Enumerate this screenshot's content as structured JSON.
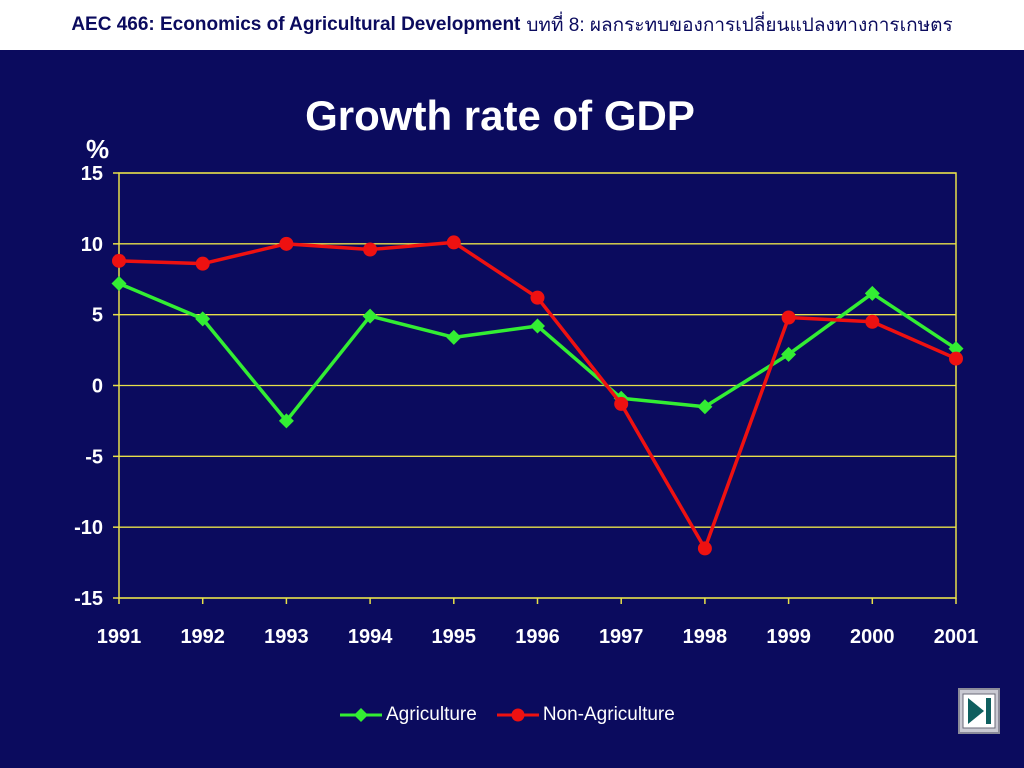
{
  "header": {
    "course": "AEC 466: Economics of Agricultural Development",
    "chapter": "บทที่ 8: ผลกระทบของการเปลี่ยนแปลงทางการเกษตร"
  },
  "colors": {
    "background": "#0b0b5e",
    "grid": "#e8e04a",
    "agriculture": "#33ee33",
    "non_agriculture": "#ee1111"
  },
  "chart_data": {
    "type": "line",
    "title": "Growth rate of GDP",
    "ylabel": "%",
    "xlabel": "",
    "x": [
      "1991",
      "1992",
      "1993",
      "1994",
      "1995",
      "1996",
      "1997",
      "1998",
      "1999",
      "2000",
      "2001"
    ],
    "ylim": [
      -15,
      15
    ],
    "yticks": [
      15,
      10,
      5,
      0,
      -5,
      -10,
      -15
    ],
    "grid": true,
    "legend": "bottom",
    "series": [
      {
        "name": "Agriculture",
        "marker": "diamond",
        "color": "#33ee33",
        "values": [
          7.2,
          4.7,
          -2.5,
          4.9,
          3.4,
          4.2,
          -0.9,
          -1.5,
          2.2,
          6.5,
          2.6
        ]
      },
      {
        "name": "Non-Agriculture",
        "marker": "circle",
        "color": "#ee1111",
        "values": [
          8.8,
          8.6,
          10.0,
          9.6,
          10.1,
          6.2,
          -1.3,
          -11.5,
          4.8,
          4.5,
          1.9
        ]
      }
    ]
  },
  "nav": {
    "next_icon": "play-next-icon"
  }
}
